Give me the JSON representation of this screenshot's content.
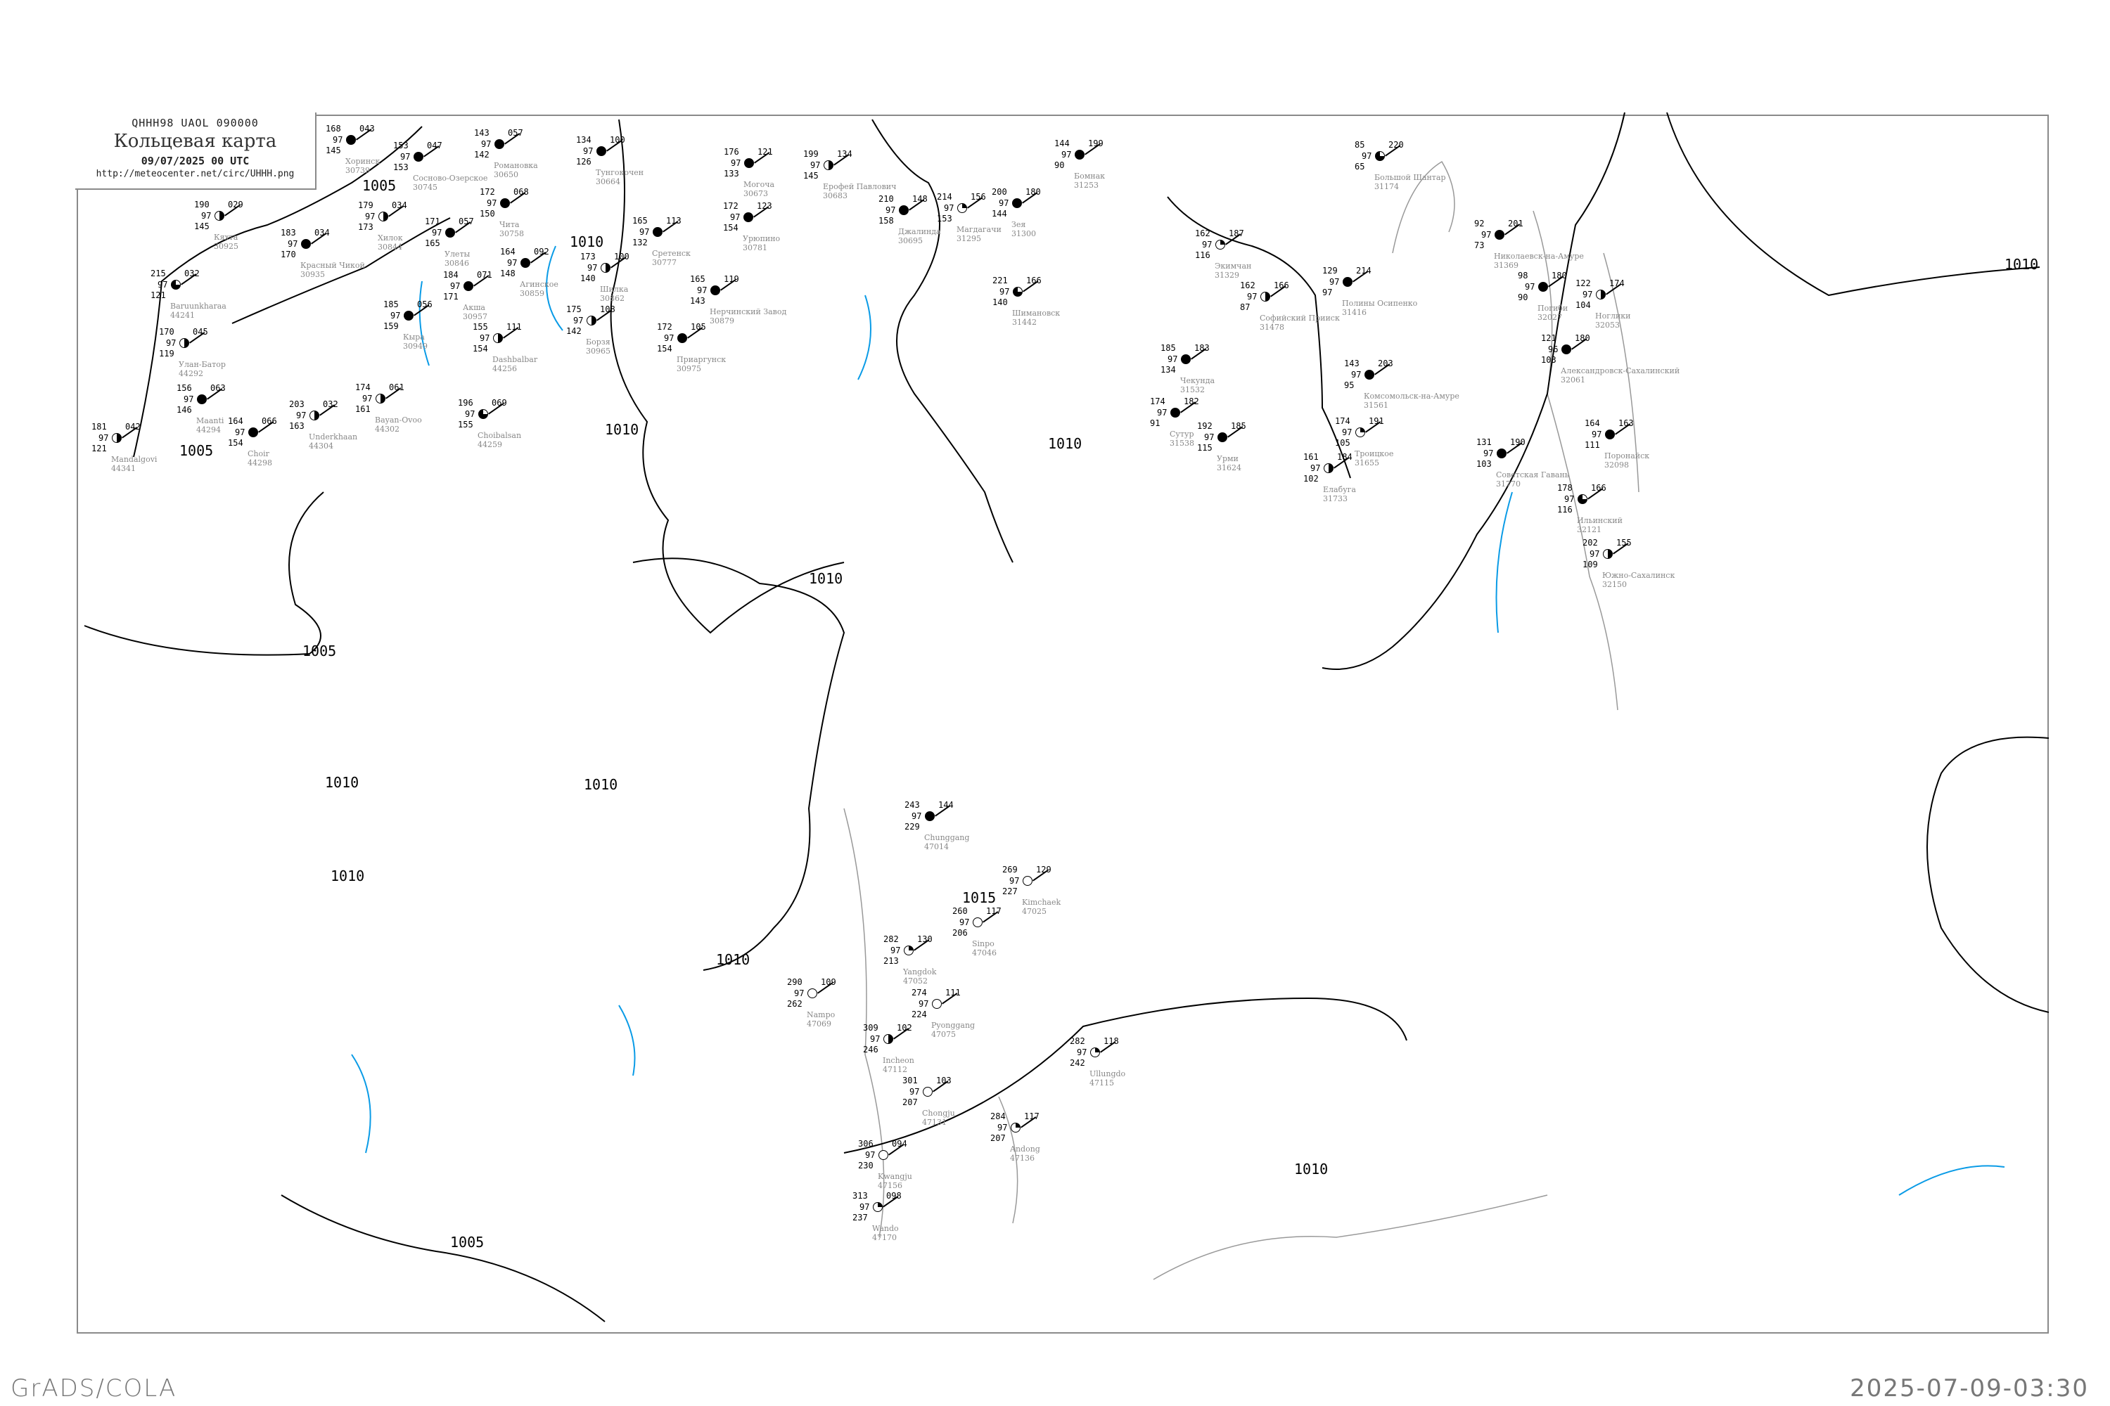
{
  "header": {
    "code": "QHHH98   UAOL   090000",
    "title": "Кольцевая карта",
    "date": "09/07/2025 00 UTC",
    "url": "http://meteocenter.net/circ/UHHH.png"
  },
  "footer": {
    "left": "GrADS/COLA",
    "right": "2025-07-09-03:30"
  },
  "colors": {
    "isobar": "#000000",
    "coastline": "#999999",
    "river": "#0a9be6",
    "precip_green": "#22cc22",
    "fog_yellow": "#f5f000"
  },
  "isobar_labels": [
    "1005",
    "1005",
    "1010",
    "1010",
    "1010",
    "1010",
    "1010",
    "1010",
    "1015",
    "1010",
    "1010",
    "1005",
    "1005",
    "1010",
    "1010"
  ],
  "stations": [
    {
      "name": "Кяхта",
      "id": "30925",
      "t": "190",
      "m": "97",
      "td": "145",
      "p": "029",
      "cover": "half"
    },
    {
      "name": "Красный Чикой",
      "id": "30935",
      "t": "183",
      "m": "97",
      "td": "170",
      "p": "034",
      "cover": "full"
    },
    {
      "name": "Хилок",
      "id": "30844",
      "t": "179",
      "m": "97",
      "td": "173",
      "p": "034",
      "cover": "half"
    },
    {
      "name": "Улан-Батор",
      "id": "44292",
      "t": "170",
      "m": "97",
      "td": "119",
      "p": "045",
      "cover": "half"
    },
    {
      "name": "Baruunkharaa",
      "id": "44241",
      "t": "215",
      "m": "97",
      "td": "121",
      "p": "032",
      "cover": "three"
    },
    {
      "name": "Maanti",
      "id": "44294",
      "t": "156",
      "m": "97",
      "td": "146",
      "p": "063",
      "cover": "full"
    },
    {
      "name": "Choir",
      "id": "44298",
      "t": "164",
      "m": "97",
      "td": "154",
      "p": "066",
      "cover": "full"
    },
    {
      "name": "Mandalgovi",
      "id": "44341",
      "t": "181",
      "m": "97",
      "td": "121",
      "p": "042",
      "cover": "half"
    },
    {
      "name": "Underkhaan",
      "id": "44304",
      "t": "203",
      "m": "97",
      "td": "163",
      "p": "032",
      "cover": "half"
    },
    {
      "name": "Bayan-Ovoo",
      "id": "44302",
      "t": "174",
      "m": "97",
      "td": "161",
      "p": "061",
      "cover": "half"
    },
    {
      "name": "Choibalsan",
      "id": "44259",
      "t": "196",
      "m": "97",
      "td": "155",
      "p": "069",
      "cover": "three"
    },
    {
      "name": "Dashbalbar",
      "id": "44256",
      "t": "155",
      "m": "97",
      "td": "154",
      "p": "111",
      "cover": "half"
    },
    {
      "name": "Кыра",
      "id": "30949",
      "t": "185",
      "m": "97",
      "td": "159",
      "p": "056",
      "cover": "full"
    },
    {
      "name": "Акша",
      "id": "30957",
      "t": "184",
      "m": "97",
      "td": "171",
      "p": "071",
      "cover": "full"
    },
    {
      "name": "Улеты",
      "id": "30846",
      "t": "171",
      "m": "97",
      "td": "165",
      "p": "057",
      "cover": "full"
    },
    {
      "name": "Чита",
      "id": "30758",
      "t": "172",
      "m": "97",
      "td": "150",
      "p": "068",
      "cover": "full"
    },
    {
      "name": "Романовка",
      "id": "30650",
      "t": "143",
      "m": "97",
      "td": "142",
      "p": "057",
      "cover": "full"
    },
    {
      "name": "Сосново-Озерское",
      "id": "30745",
      "t": "153",
      "m": "97",
      "td": "153",
      "p": "047",
      "cover": "full"
    },
    {
      "name": "Хоринск",
      "id": "30739",
      "t": "168",
      "m": "97",
      "td": "145",
      "p": "043",
      "cover": "full"
    },
    {
      "name": "Агинское",
      "id": "30859",
      "t": "164",
      "m": "97",
      "td": "148",
      "p": "092",
      "cover": "full"
    },
    {
      "name": "Тунгокочен",
      "id": "30664",
      "t": "134",
      "m": "97",
      "td": "126",
      "p": "100",
      "cover": "full"
    },
    {
      "name": "Могоча",
      "id": "30673",
      "t": "176",
      "m": "97",
      "td": "133",
      "p": "121",
      "cover": "full"
    },
    {
      "name": "Ерофей Павлович",
      "id": "30683",
      "t": "199",
      "m": "97",
      "td": "145",
      "p": "134",
      "cover": "half"
    },
    {
      "name": "Джалинда",
      "id": "30695",
      "t": "210",
      "m": "97",
      "td": "158",
      "p": "148",
      "cover": "full"
    },
    {
      "name": "Магдагачи",
      "id": "31295",
      "t": "214",
      "m": "97",
      "td": "153",
      "p": "156",
      "cover": "quarter"
    },
    {
      "name": "Зея",
      "id": "31300",
      "t": "200",
      "m": "97",
      "td": "144",
      "p": "180",
      "cover": "full"
    },
    {
      "name": "Бомнак",
      "id": "31253",
      "t": "144",
      "m": "97",
      "td": "90",
      "p": "199",
      "cover": "full"
    },
    {
      "name": "Сретенск",
      "id": "30777",
      "t": "165",
      "m": "97",
      "td": "132",
      "p": "113",
      "cover": "full"
    },
    {
      "name": "Урюпино",
      "id": "30781",
      "t": "172",
      "m": "97",
      "td": "154",
      "p": "123",
      "cover": "full"
    },
    {
      "name": "Нерчинский Завод",
      "id": "30879",
      "t": "165",
      "m": "97",
      "td": "143",
      "p": "119",
      "cover": "full"
    },
    {
      "name": "Приаргунск",
      "id": "30975",
      "t": "172",
      "m": "97",
      "td": "154",
      "p": "105",
      "cover": "full"
    },
    {
      "name": "Шимановск",
      "id": "31442",
      "t": "221",
      "m": "97",
      "td": "140",
      "p": "166",
      "cover": "three"
    },
    {
      "name": "Шилка",
      "id": "30862",
      "t": "173",
      "m": "97",
      "td": "140",
      "p": "100",
      "cover": "half"
    },
    {
      "name": "Борзя",
      "id": "30965",
      "t": "175",
      "m": "97",
      "td": "142",
      "p": "108",
      "cover": "half"
    },
    {
      "name": "Большой Шантар",
      "id": "31174",
      "t": "85",
      "m": "97",
      "td": "65",
      "p": "220",
      "cover": "three"
    },
    {
      "name": "Экимчан",
      "id": "31329",
      "t": "162",
      "m": "97",
      "td": "116",
      "p": "187",
      "cover": "quarter"
    },
    {
      "name": "Николаевск-на-Амуре",
      "id": "31369",
      "t": "92",
      "m": "97",
      "td": "73",
      "p": "201",
      "cover": "full"
    },
    {
      "name": "Полины Осипенко",
      "id": "31416",
      "t": "129",
      "m": "97",
      "td": "97",
      "p": "214",
      "cover": "full"
    },
    {
      "name": "Софийский Прииск",
      "id": "31478",
      "t": "162",
      "m": "97",
      "td": "87",
      "p": "166",
      "cover": "half"
    },
    {
      "name": "Погиби",
      "id": "32027",
      "t": "98",
      "m": "97",
      "td": "90",
      "p": "180",
      "cover": "full"
    },
    {
      "name": "Ноглики",
      "id": "32053",
      "t": "122",
      "m": "97",
      "td": "104",
      "p": "174",
      "cover": "half"
    },
    {
      "name": "Комсомольск-на-Амуре",
      "id": "31561",
      "t": "143",
      "m": "97",
      "td": "95",
      "p": "203",
      "cover": "full"
    },
    {
      "name": "Чекунда",
      "id": "31532",
      "t": "185",
      "m": "97",
      "td": "134",
      "p": "183",
      "cover": "full"
    },
    {
      "name": "Александровск-Сахалинский",
      "id": "32061",
      "t": "121",
      "m": "96",
      "td": "103",
      "p": "180",
      "cover": "full"
    },
    {
      "name": "Поронайск",
      "id": "32098",
      "t": "164",
      "m": "97",
      "td": "111",
      "p": "163",
      "cover": "full"
    },
    {
      "name": "Советская Гавань",
      "id": "31770",
      "t": "131",
      "m": "97",
      "td": "103",
      "p": "190",
      "cover": "full"
    },
    {
      "name": "Южно-Сахалинск",
      "id": "32150",
      "t": "202",
      "m": "97",
      "td": "109",
      "p": "155",
      "cover": "half"
    },
    {
      "name": "Ильинский",
      "id": "32121",
      "t": "178",
      "m": "97",
      "td": "116",
      "p": "166",
      "cover": "three"
    },
    {
      "name": "Урми",
      "id": "31624",
      "t": "192",
      "m": "97",
      "td": "115",
      "p": "185",
      "cover": "full"
    },
    {
      "name": "Елабуга",
      "id": "31733",
      "t": "161",
      "m": "97",
      "td": "102",
      "p": "184",
      "cover": "half"
    },
    {
      "name": "Сутур",
      "id": "31538",
      "t": "174",
      "m": "97",
      "td": "91",
      "p": "182",
      "cover": "full"
    },
    {
      "name": "Троицкое",
      "id": "31655",
      "t": "174",
      "m": "97",
      "td": "105",
      "p": "191",
      "cover": "quarter"
    },
    {
      "name": "Chunggang",
      "id": "47014",
      "t": "243",
      "m": "97",
      "td": "229",
      "p": "144",
      "cover": "full"
    },
    {
      "name": "Kimchaek",
      "id": "47025",
      "t": "269",
      "m": "97",
      "td": "227",
      "p": "129",
      "cover": "empty"
    },
    {
      "name": "Sinpo",
      "id": "47046",
      "t": "260",
      "m": "97",
      "td": "206",
      "p": "117",
      "cover": "empty"
    },
    {
      "name": "Nampo",
      "id": "47069",
      "t": "290",
      "m": "97",
      "td": "262",
      "p": "109",
      "cover": "empty"
    },
    {
      "name": "Yangdok",
      "id": "47052",
      "t": "282",
      "m": "97",
      "td": "213",
      "p": "130",
      "cover": "quarter"
    },
    {
      "name": "Pyonggang",
      "id": "47075",
      "t": "274",
      "m": "97",
      "td": "224",
      "p": "111",
      "cover": "empty"
    },
    {
      "name": "Incheon",
      "id": "47112",
      "t": "309",
      "m": "97",
      "td": "246",
      "p": "102",
      "cover": "half"
    },
    {
      "name": "Ullungdo",
      "id": "47115",
      "t": "282",
      "m": "97",
      "td": "242",
      "p": "118",
      "cover": "quarter"
    },
    {
      "name": "Chongju",
      "id": "47131",
      "t": "301",
      "m": "97",
      "td": "207",
      "p": "103",
      "cover": "empty"
    },
    {
      "name": "Wando",
      "id": "47170",
      "t": "313",
      "m": "97",
      "td": "237",
      "p": "098",
      "cover": "quarter"
    },
    {
      "name": "Kwangju",
      "id": "47156",
      "t": "306",
      "m": "97",
      "td": "230",
      "p": "094",
      "cover": "empty"
    },
    {
      "name": "Andong",
      "id": "47136",
      "t": "284",
      "m": "97",
      "td": "207",
      "p": "117",
      "cover": "quarter"
    }
  ]
}
